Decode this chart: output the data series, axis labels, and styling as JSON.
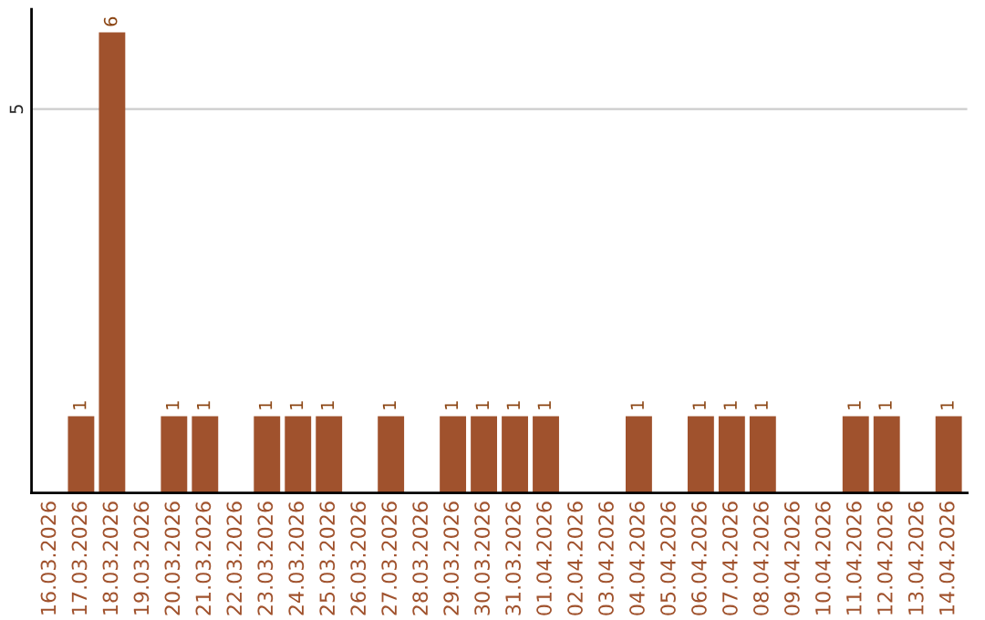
{
  "chart_data": {
    "type": "bar",
    "categories": [
      "16.03.2026",
      "17.03.2026",
      "18.03.2026",
      "19.03.2026",
      "20.03.2026",
      "21.03.2026",
      "22.03.2026",
      "23.03.2026",
      "24.03.2026",
      "25.03.2026",
      "26.03.2026",
      "27.03.2026",
      "28.03.2026",
      "29.03.2026",
      "30.03.2026",
      "31.03.2026",
      "01.04.2026",
      "02.04.2026",
      "03.04.2026",
      "04.04.2026",
      "05.04.2026",
      "06.04.2026",
      "07.04.2026",
      "08.04.2026",
      "09.04.2026",
      "10.04.2026",
      "11.04.2026",
      "12.04.2026",
      "13.04.2026",
      "14.04.2026"
    ],
    "values": [
      0,
      1,
      6,
      0,
      1,
      1,
      0,
      1,
      1,
      1,
      0,
      1,
      0,
      1,
      1,
      1,
      1,
      0,
      0,
      1,
      0,
      1,
      1,
      1,
      0,
      0,
      1,
      1,
      0,
      1
    ],
    "value_labels": [
      null,
      "1",
      "6",
      null,
      "1",
      "1",
      null,
      "1",
      "1",
      "1",
      null,
      "1",
      null,
      "1",
      "1",
      "1",
      "1",
      null,
      null,
      "1",
      null,
      "1",
      "1",
      "1",
      null,
      null,
      "1",
      "1",
      null,
      "1"
    ],
    "color": "#a0522d",
    "ylim": [
      0,
      6.3
    ],
    "yticks": [
      5
    ],
    "grid": "y"
  }
}
